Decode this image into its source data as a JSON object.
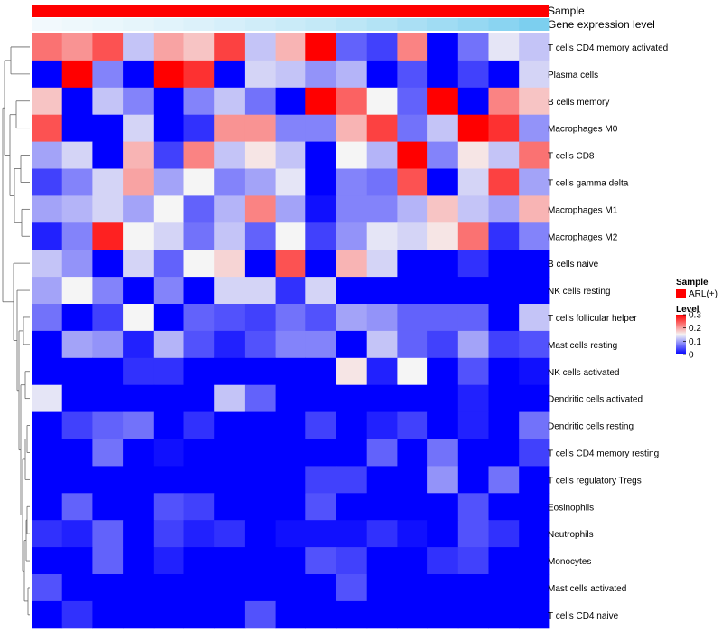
{
  "chart_data": {
    "type": "heatmap",
    "annotation_tracks": [
      {
        "label": "Sample",
        "value": "ARL(+)",
        "color": "#ff0000"
      },
      {
        "label": "Gene expression level",
        "color_low": "#f4fafd",
        "color_high": "#7ccfef"
      }
    ],
    "rows": [
      "T cells CD4 memory activated",
      "Plasma cells",
      "B cells memory",
      "Macrophages M0",
      "T cells CD8",
      "T cells gamma delta",
      "Macrophages M1",
      "Macrophages M2",
      "B cells naive",
      "NK cells resting",
      "T cells follicular helper",
      "Mast cells resting",
      "NK cells activated",
      "Dendritic cells activated",
      "Dendritic cells resting",
      "T cells CD4 memory resting",
      "T cells regulatory  Tregs",
      "Eosinophils",
      "Neutrophils",
      "Monocytes",
      "Mast cells activated",
      "T cells CD4 naive"
    ],
    "n_columns": 17,
    "values": [
      [
        0.23,
        0.21,
        0.25,
        0.12,
        0.2,
        0.18,
        0.26,
        0.12,
        0.19,
        0.32,
        0.06,
        0.04,
        0.22,
        0.0,
        0.07,
        0.14,
        0.12
      ],
      [
        0.0,
        0.31,
        0.08,
        0.0,
        0.32,
        0.27,
        0.0,
        0.13,
        0.12,
        0.09,
        0.11,
        0.0,
        0.05,
        0.0,
        0.04,
        0.0,
        0.13
      ],
      [
        0.18,
        0.0,
        0.12,
        0.08,
        0.0,
        0.08,
        0.12,
        0.07,
        0.0,
        0.32,
        0.24,
        0.15,
        0.06,
        0.32,
        0.0,
        0.22,
        0.18
      ],
      [
        0.25,
        0.0,
        0.0,
        0.13,
        0.0,
        0.03,
        0.21,
        0.21,
        0.08,
        0.08,
        0.19,
        0.26,
        0.07,
        0.12,
        0.32,
        0.27,
        0.09
      ],
      [
        0.1,
        0.13,
        0.0,
        0.19,
        0.04,
        0.22,
        0.12,
        0.16,
        0.12,
        0.0,
        0.15,
        0.11,
        0.3,
        0.08,
        0.16,
        0.12,
        0.23
      ],
      [
        0.04,
        0.08,
        0.13,
        0.2,
        0.1,
        0.15,
        0.08,
        0.1,
        0.14,
        0.0,
        0.08,
        0.07,
        0.25,
        0.0,
        0.13,
        0.26,
        0.1
      ],
      [
        0.1,
        0.11,
        0.13,
        0.1,
        0.15,
        0.06,
        0.11,
        0.22,
        0.1,
        0.01,
        0.08,
        0.08,
        0.11,
        0.18,
        0.12,
        0.1,
        0.19
      ],
      [
        0.02,
        0.08,
        0.28,
        0.15,
        0.13,
        0.07,
        0.12,
        0.06,
        0.15,
        0.04,
        0.09,
        0.14,
        0.13,
        0.16,
        0.23,
        0.03,
        0.08
      ],
      [
        0.12,
        0.09,
        0.0,
        0.13,
        0.06,
        0.15,
        0.17,
        0.0,
        0.25,
        0.0,
        0.19,
        0.13,
        0.0,
        0.0,
        0.03,
        0.0,
        0.0
      ],
      [
        0.1,
        0.15,
        0.08,
        0.0,
        0.08,
        0.0,
        0.13,
        0.13,
        0.03,
        0.13,
        0.0,
        0.0,
        0.0,
        0.0,
        0.0,
        0.0,
        0.0
      ],
      [
        0.07,
        0.0,
        0.04,
        0.15,
        0.0,
        0.06,
        0.05,
        0.04,
        0.07,
        0.05,
        0.1,
        0.09,
        0.06,
        0.06,
        0.06,
        0.0,
        0.12
      ],
      [
        0.0,
        0.1,
        0.09,
        0.02,
        0.11,
        0.05,
        0.02,
        0.05,
        0.08,
        0.08,
        0.0,
        0.12,
        0.06,
        0.04,
        0.1,
        0.04,
        0.05
      ],
      [
        0.0,
        0.0,
        0.0,
        0.03,
        0.03,
        0.0,
        0.0,
        0.0,
        0.0,
        0.0,
        0.16,
        0.02,
        0.15,
        0.0,
        0.05,
        0.0,
        0.01
      ],
      [
        0.14,
        0.0,
        0.0,
        0.0,
        0.0,
        0.0,
        0.12,
        0.06,
        0.0,
        0.0,
        0.0,
        0.0,
        0.0,
        0.0,
        0.02,
        0.0,
        0.0
      ],
      [
        0.0,
        0.04,
        0.06,
        0.07,
        0.0,
        0.03,
        0.0,
        0.0,
        0.0,
        0.04,
        0.0,
        0.02,
        0.04,
        0.0,
        0.02,
        0.0,
        0.07
      ],
      [
        0.0,
        0.0,
        0.07,
        0.0,
        0.01,
        0.0,
        0.0,
        0.0,
        0.0,
        0.0,
        0.0,
        0.06,
        0.0,
        0.07,
        0.0,
        0.0,
        0.04
      ],
      [
        0.0,
        0.0,
        0.0,
        0.0,
        0.0,
        0.0,
        0.0,
        0.0,
        0.0,
        0.04,
        0.04,
        0.0,
        0.0,
        0.09,
        0.0,
        0.07,
        0.0
      ],
      [
        0.0,
        0.06,
        0.0,
        0.0,
        0.05,
        0.04,
        0.0,
        0.0,
        0.0,
        0.05,
        0.0,
        0.0,
        0.0,
        0.0,
        0.05,
        0.0,
        0.0
      ],
      [
        0.03,
        0.02,
        0.06,
        0.0,
        0.04,
        0.02,
        0.03,
        0.0,
        0.01,
        0.01,
        0.01,
        0.03,
        0.01,
        0.0,
        0.05,
        0.03,
        0.0
      ],
      [
        0.0,
        0.0,
        0.06,
        0.0,
        0.02,
        0.0,
        0.0,
        0.0,
        0.0,
        0.05,
        0.04,
        0.0,
        0.0,
        0.03,
        0.04,
        0.0,
        0.0
      ],
      [
        0.05,
        0.0,
        0.0,
        0.0,
        0.0,
        0.0,
        0.0,
        0.0,
        0.0,
        0.0,
        0.05,
        0.0,
        0.0,
        0.0,
        0.0,
        0.0,
        0.0
      ],
      [
        0.0,
        0.03,
        0.0,
        0.0,
        0.0,
        0.0,
        0.0,
        0.05,
        0.0,
        0.0,
        0.0,
        0.0,
        0.0,
        0.0,
        0.0,
        0.0,
        0.0
      ]
    ],
    "gene_expression_levels": [
      0.02,
      0.05,
      0.08,
      0.12,
      0.16,
      0.2,
      0.25,
      0.3,
      0.35,
      0.4,
      0.47,
      0.54,
      0.62,
      0.7,
      0.78,
      0.88,
      1.0
    ],
    "color_scale": {
      "stops": [
        {
          "value": 0.0,
          "color": "#0000ff"
        },
        {
          "value": 0.15,
          "color": "#f5f5f5"
        },
        {
          "value": 0.3,
          "color": "#ff0000"
        }
      ],
      "range": [
        0,
        0.3
      ]
    },
    "legend": {
      "sample_title": "Sample",
      "sample_entry": "ARL(+)",
      "sample_color": "#ff0000",
      "level_title": "Level",
      "level_ticks": [
        "0.3",
        "0.2",
        "0.1",
        "0"
      ],
      "position": "right"
    },
    "dendrogram": "rows"
  }
}
